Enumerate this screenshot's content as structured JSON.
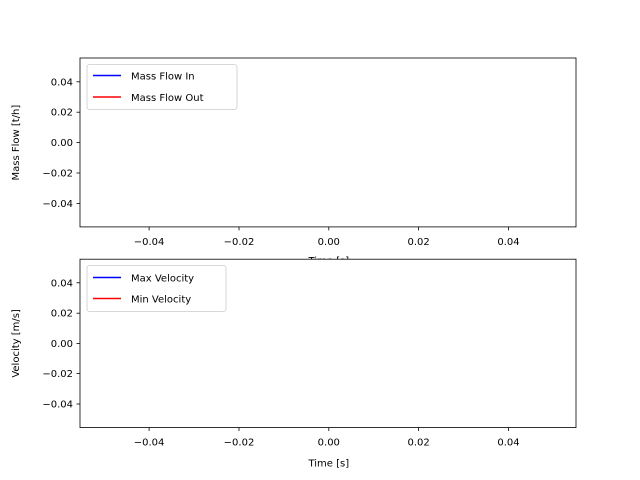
{
  "chart_data": [
    {
      "type": "line",
      "xlabel": "Time [s]",
      "ylabel": "Mass Flow [t/h]",
      "xlim": [
        -0.055,
        0.055
      ],
      "ylim": [
        -0.055,
        0.055
      ],
      "xticks": [
        "−0.04",
        "−0.02",
        "0.00",
        "0.02",
        "0.04"
      ],
      "yticks": [
        "0.04",
        "0.02",
        "0.00",
        "−0.02",
        "−0.04"
      ],
      "grid": false,
      "legend_position": "upper left",
      "series": [
        {
          "name": "Mass Flow In",
          "color": "#0000ff",
          "x": [],
          "y": []
        },
        {
          "name": "Mass Flow Out",
          "color": "#ff0000",
          "x": [],
          "y": []
        }
      ]
    },
    {
      "type": "line",
      "xlabel": "Time [s]",
      "ylabel": "Velocity [m/s]",
      "xlim": [
        -0.055,
        0.055
      ],
      "ylim": [
        -0.055,
        0.055
      ],
      "xticks": [
        "−0.04",
        "−0.02",
        "0.00",
        "0.02",
        "0.04"
      ],
      "yticks": [
        "0.04",
        "0.02",
        "0.00",
        "−0.02",
        "−0.04"
      ],
      "grid": false,
      "legend_position": "upper left",
      "series": [
        {
          "name": "Max Velocity",
          "color": "#0000ff",
          "x": [],
          "y": []
        },
        {
          "name": "Min Velocity",
          "color": "#ff0000",
          "x": [],
          "y": []
        }
      ]
    }
  ]
}
